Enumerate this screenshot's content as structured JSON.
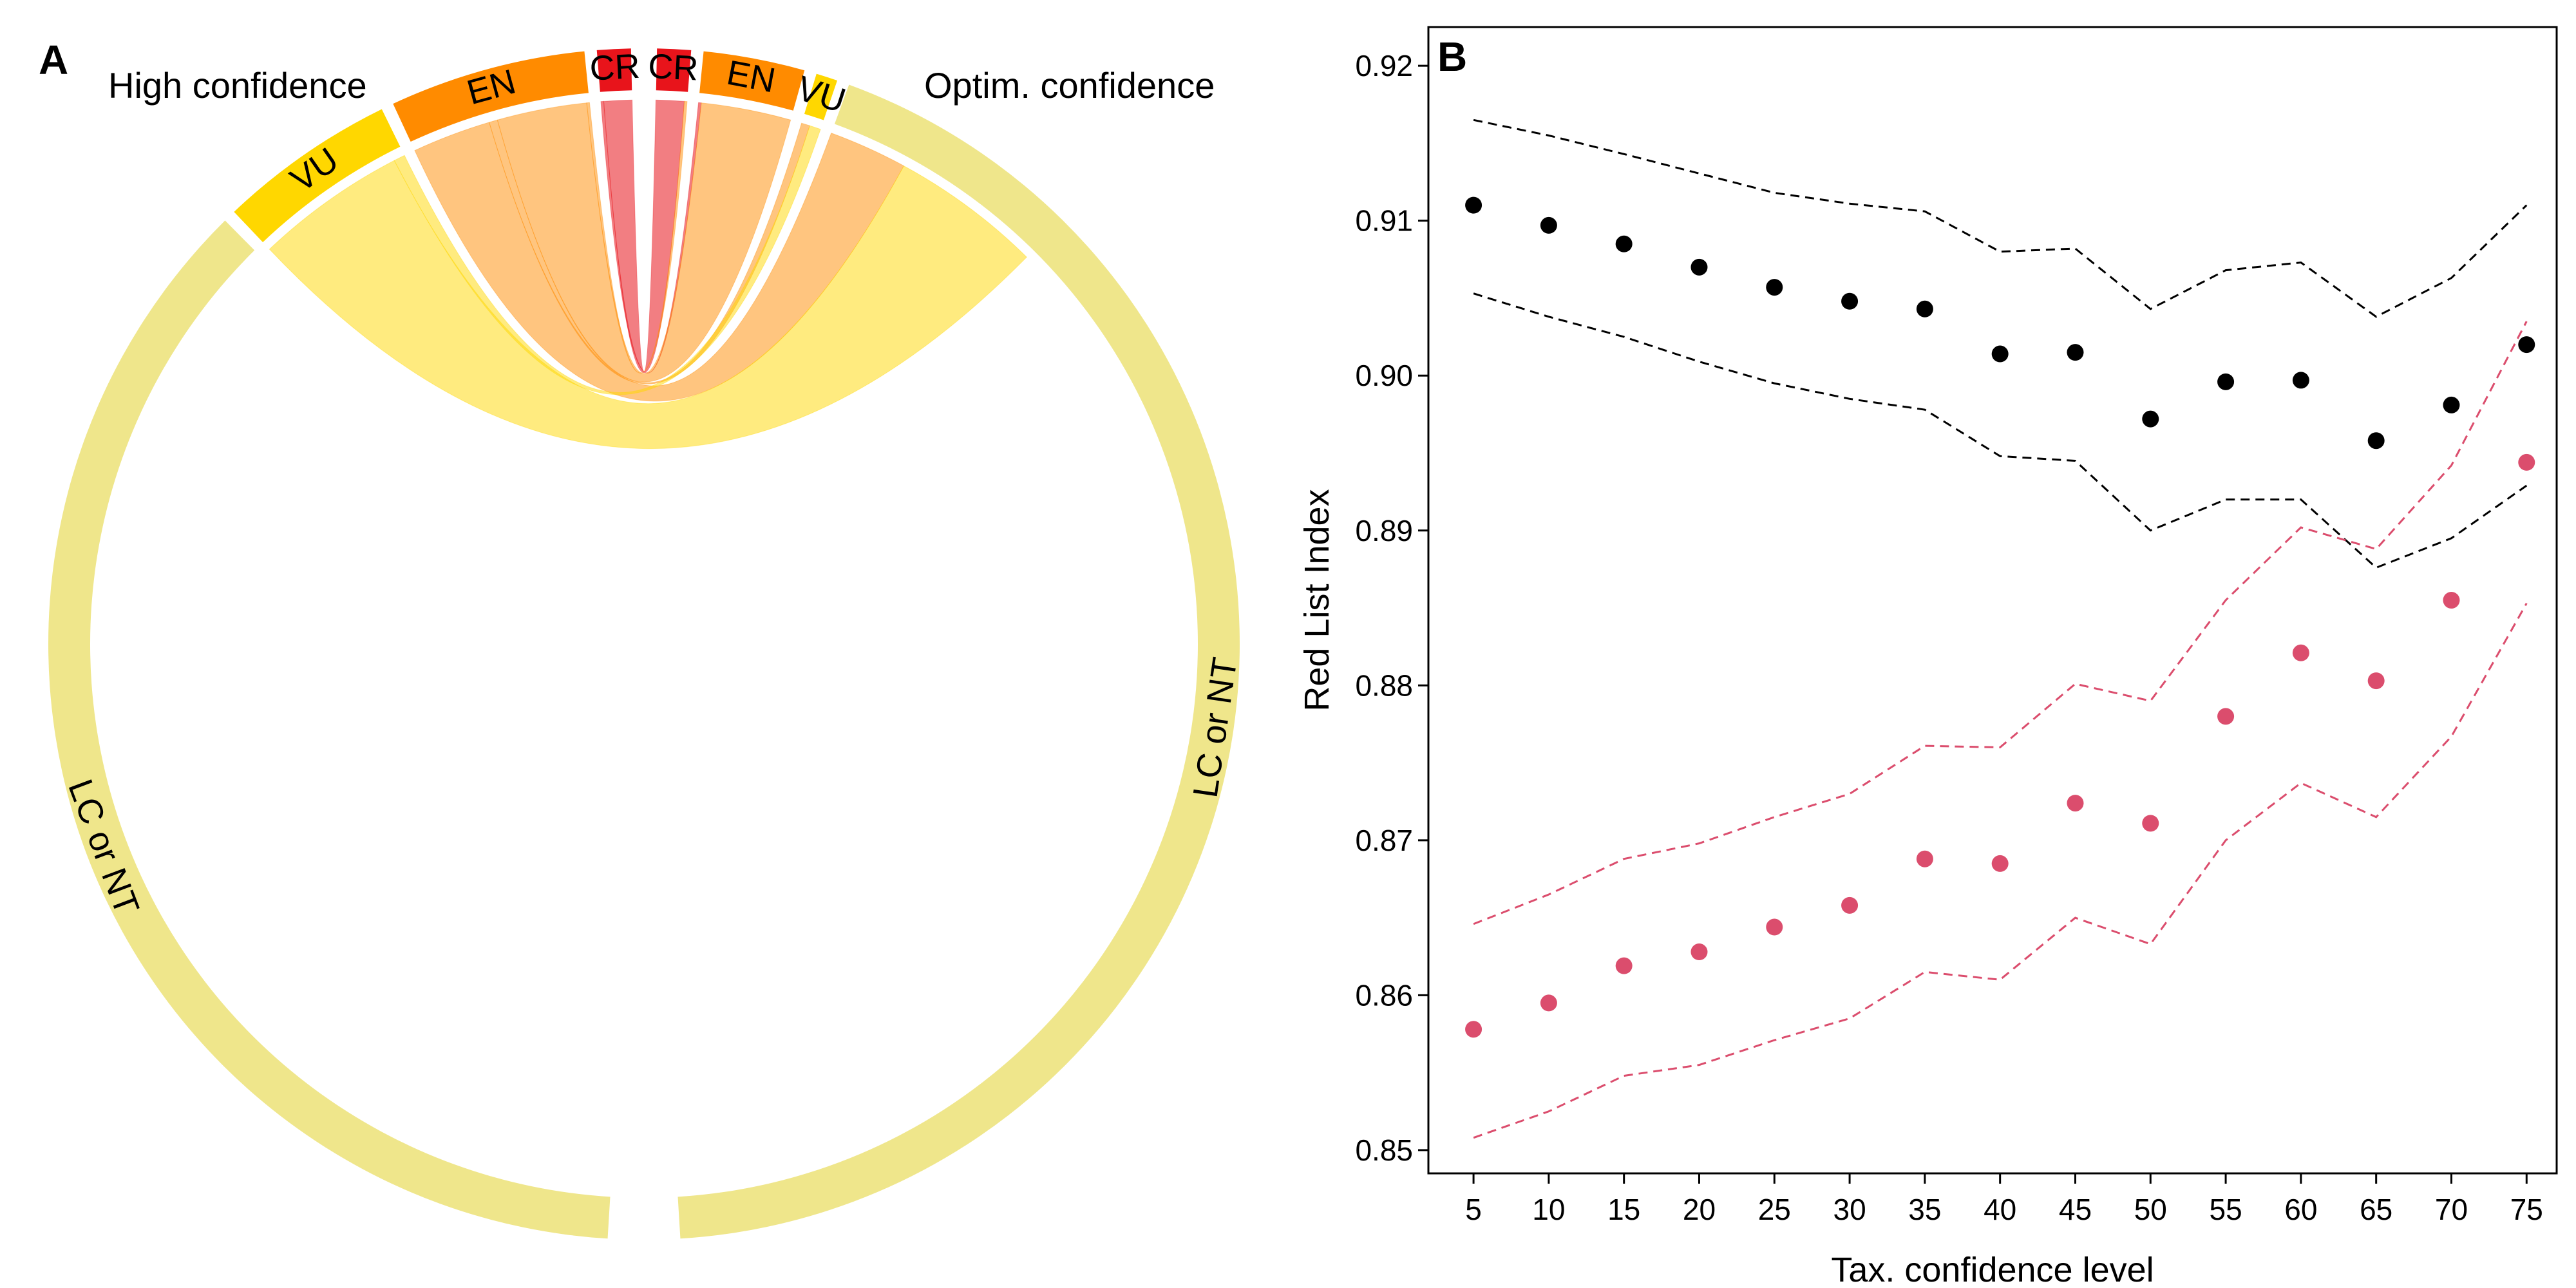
{
  "chart_data": [
    {
      "type": "chord",
      "panel": "A",
      "left_title": "High confidence",
      "right_title": "Optim. confidence",
      "categories": [
        "CR",
        "EN",
        "VU",
        "LC or NT"
      ],
      "colors": {
        "CR": "#e8141b",
        "EN": "#ff8b00",
        "VU": "#ffd700",
        "LC or NT": "#efe68b"
      },
      "flows": [
        {
          "from": "CR",
          "to": "CR",
          "value": 10
        },
        {
          "from": "CR",
          "to": "EN",
          "value": 1
        },
        {
          "from": "EN",
          "to": "CR",
          "value": 1
        },
        {
          "from": "EN",
          "to": "EN",
          "value": 32
        },
        {
          "from": "EN",
          "to": "VU",
          "value": 3
        },
        {
          "from": "EN",
          "to": "LC or NT",
          "value": 28
        },
        {
          "from": "VU",
          "to": "VU",
          "value": 4
        },
        {
          "from": "VU",
          "to": "LC or NT",
          "value": 54
        },
        {
          "from": "LC or NT",
          "to": "LC or NT",
          "value": 440
        }
      ]
    },
    {
      "type": "scatter",
      "panel": "B",
      "xlabel": "Tax. confidence level",
      "ylabel": "Red List Index",
      "x": [
        5,
        10,
        15,
        20,
        25,
        30,
        35,
        40,
        45,
        50,
        55,
        60,
        65,
        70,
        75
      ],
      "xlim": [
        2,
        77
      ],
      "ylim": [
        0.8485,
        0.9225
      ],
      "yticks": [
        "0.85",
        "0.86",
        "0.87",
        "0.88",
        "0.89",
        "0.90",
        "0.91",
        "0.92"
      ],
      "series": [
        {
          "color": "#000000",
          "values": [
            0.911,
            0.9097,
            0.9085,
            0.907,
            0.9057,
            0.9048,
            0.9043,
            0.9014,
            0.9015,
            0.8972,
            0.8996,
            0.8997,
            0.8958,
            0.8981,
            0.902
          ],
          "upper": [
            0.9165,
            0.9155,
            0.9143,
            0.9118,
            0.9111,
            0.9106,
            0.908,
            0.9082,
            0.9043,
            0.9068,
            0.9073,
            0.9038,
            0.9063,
            0.911
          ],
          "upper_x": [
            5,
            10,
            15,
            25,
            30,
            35,
            40,
            45,
            50,
            55,
            60,
            65,
            70,
            75
          ],
          "lower": [
            0.9053,
            0.9038,
            0.9025,
            0.9009,
            0.8995,
            0.8985,
            0.8978,
            0.8948,
            0.8945,
            0.89,
            0.892,
            0.892,
            0.8876,
            0.8895,
            0.8929
          ]
        },
        {
          "color": "#db4d6d",
          "values": [
            0.8578,
            0.8595,
            0.8619,
            0.8628,
            0.8644,
            0.8658,
            0.8688,
            0.8685,
            0.8724,
            0.8711,
            0.878,
            0.8821,
            0.8803,
            0.8855,
            0.8944
          ],
          "upper": [
            0.8646,
            0.8665,
            0.8688,
            0.8698,
            0.8715,
            0.873,
            0.8761,
            0.876,
            0.8801,
            0.879,
            0.8855,
            0.8902,
            0.8888,
            0.8942,
            0.9035
          ],
          "lower": [
            0.8508,
            0.8525,
            0.8548,
            0.8555,
            0.8571,
            0.8585,
            0.8615,
            0.861,
            0.865,
            0.8633,
            0.87,
            0.8737,
            0.8715,
            0.8767,
            0.8853
          ]
        }
      ]
    }
  ]
}
